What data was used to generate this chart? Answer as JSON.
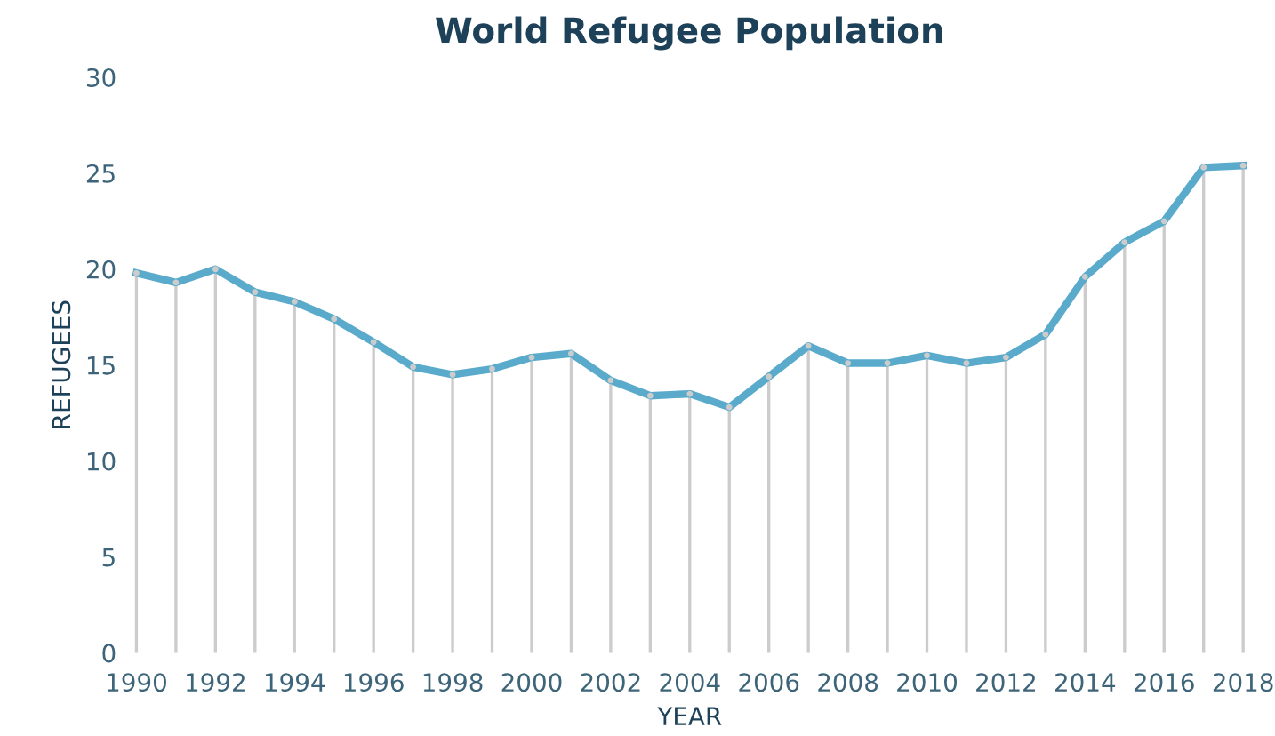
{
  "chart_data": {
    "type": "line",
    "title": "World Refugee Population",
    "xlabel": "YEAR",
    "ylabel": "REFUGEES",
    "x": [
      1990,
      1991,
      1992,
      1993,
      1994,
      1995,
      1996,
      1997,
      1998,
      1999,
      2000,
      2001,
      2002,
      2003,
      2004,
      2005,
      2006,
      2007,
      2008,
      2009,
      2010,
      2011,
      2012,
      2013,
      2014,
      2015,
      2016,
      2017,
      2018
    ],
    "series": [
      {
        "type": "lollipop",
        "color": "#cccccc",
        "values": [
          19.8,
          19.3,
          20.0,
          18.8,
          18.3,
          17.4,
          16.2,
          14.9,
          14.5,
          14.8,
          15.4,
          15.6,
          14.2,
          13.4,
          13.5,
          12.8,
          14.4,
          16.0,
          15.1,
          15.1,
          15.5,
          15.1,
          15.4,
          16.6,
          19.6,
          21.4,
          22.5,
          25.3,
          25.4
        ]
      },
      {
        "color": "#5aaacb",
        "values": [
          19.8,
          19.3,
          20.0,
          18.8,
          18.3,
          17.4,
          16.2,
          14.9,
          14.5,
          14.8,
          15.4,
          15.6,
          14.2,
          13.4,
          13.5,
          12.8,
          14.4,
          16.0,
          15.1,
          15.1,
          15.5,
          15.1,
          15.4,
          16.6,
          19.6,
          21.4,
          22.5,
          25.3,
          25.4
        ]
      }
    ],
    "xlim": [
      1990,
      2018
    ],
    "ylim": [
      0,
      30
    ],
    "xticks": [
      1990,
      1992,
      1994,
      1996,
      1998,
      2000,
      2002,
      2004,
      2006,
      2008,
      2010,
      2012,
      2014,
      2016,
      2018
    ],
    "yticks": [
      0,
      5,
      10,
      15,
      20,
      25,
      30
    ],
    "legend": false,
    "marker": "none",
    "line_style": "solid"
  }
}
